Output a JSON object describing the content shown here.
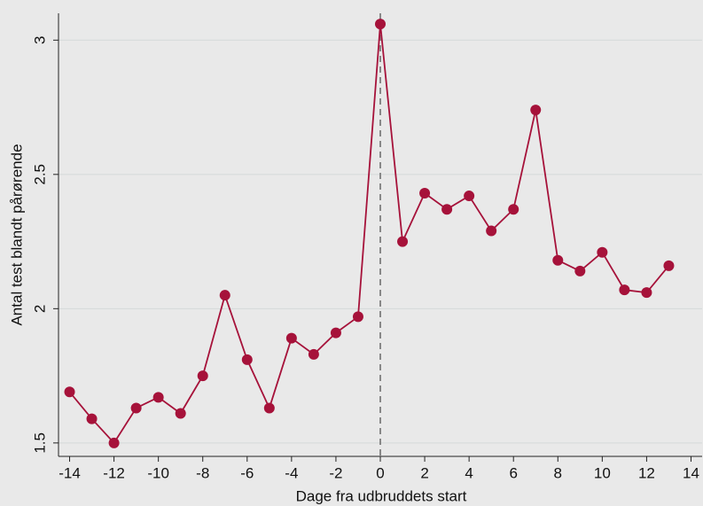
{
  "chart_data": {
    "type": "line",
    "x_label": "Dage fra udbruddets start",
    "y_label": "Antal test blandt pårørende",
    "x": [
      -14,
      -13,
      -12,
      -11,
      -10,
      -9,
      -8,
      -7,
      -6,
      -5,
      -4,
      -3,
      -2,
      -1,
      0,
      1,
      2,
      3,
      4,
      5,
      6,
      7,
      8,
      9,
      10,
      11,
      12,
      13
    ],
    "series": [
      {
        "color": "#a6123a",
        "values": [
          1.69,
          1.59,
          1.5,
          1.63,
          1.67,
          1.61,
          1.75,
          2.05,
          1.81,
          1.63,
          1.89,
          1.83,
          1.91,
          1.97,
          3.06,
          2.25,
          2.43,
          2.37,
          2.42,
          2.29,
          2.37,
          2.74,
          2.18,
          2.14,
          2.21,
          2.07,
          2.06,
          2.16
        ]
      }
    ],
    "xlim": [
      -14.5,
      14.5
    ],
    "xticks": [
      -14,
      -12,
      -10,
      -8,
      -6,
      -4,
      -2,
      0,
      2,
      4,
      6,
      8,
      10,
      12,
      14
    ],
    "ylim": [
      1.45,
      3.1
    ],
    "yticks": [
      1.5,
      2,
      2.5,
      3
    ],
    "grid": true,
    "vline": 0
  }
}
